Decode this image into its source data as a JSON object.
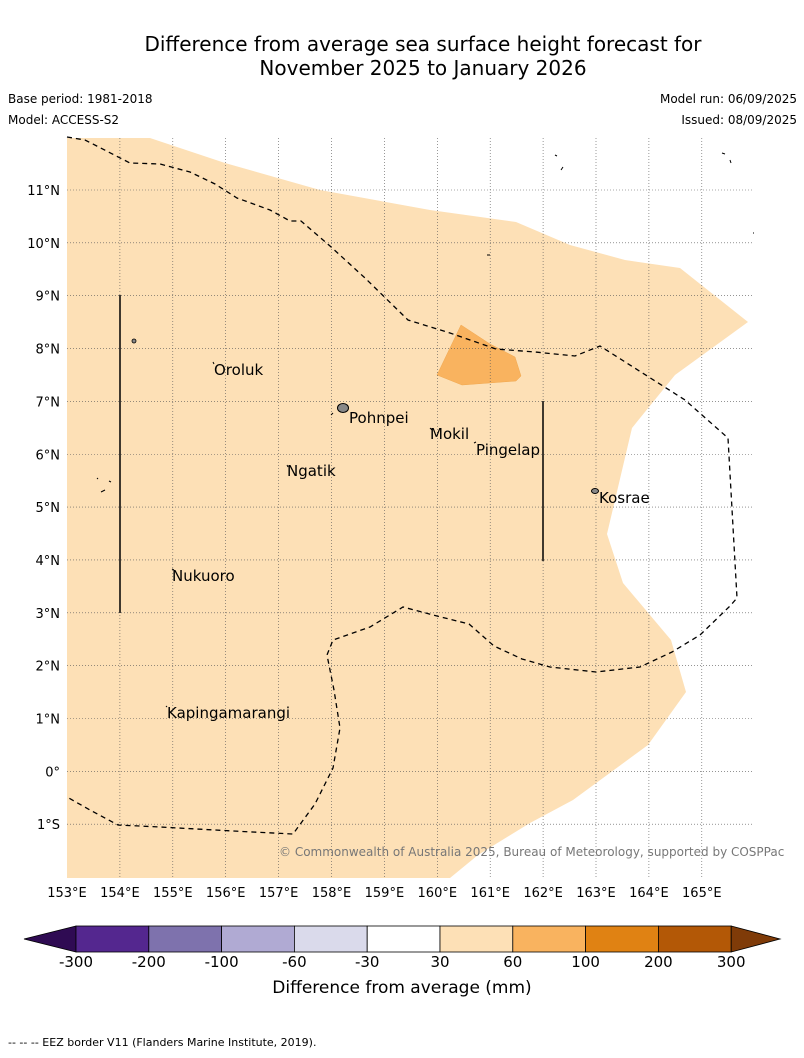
{
  "title": {
    "line1": "Difference from average sea surface height forecast for",
    "line2": "November 2025 to January 2026"
  },
  "meta": {
    "base_period": "Base period: 1981-2018",
    "model": "Model: ACCESS-S2",
    "model_run": "Model run: 06/09/2025",
    "issued": "Issued: 08/09/2025"
  },
  "map": {
    "longitude_ticks": [
      "153°E",
      "154°E",
      "155°E",
      "156°E",
      "157°E",
      "158°E",
      "159°E",
      "160°E",
      "161°E",
      "162°E",
      "163°E",
      "164°E",
      "165°E"
    ],
    "latitude_ticks": [
      "11°N",
      "10°N",
      "9°N",
      "8°N",
      "7°N",
      "6°N",
      "5°N",
      "4°N",
      "3°N",
      "2°N",
      "1°N",
      "0°",
      "1°S"
    ],
    "places": [
      "Oroluk",
      "Pohnpei",
      "Mokil",
      "Pingelap",
      "Ngatik",
      "Kosrae",
      "Nukuoro",
      "Kapingamarangi"
    ],
    "fill_color": "#fde0b6",
    "hotspot_color": "#f9b35f",
    "copyright": "© Commonwealth of Australia 2025, Bureau of Meteorology, supported by COSPPac"
  },
  "colorbar": {
    "title": "Difference from average (mm)",
    "ticks": [
      "-300",
      "-200",
      "-100",
      "-60",
      "-30",
      "30",
      "60",
      "100",
      "200",
      "300"
    ],
    "colors": [
      "#2f0b53",
      "#54278f",
      "#7e72ad",
      "#b0aad3",
      "#dadaeb",
      "#ffffff",
      "#fde0b6",
      "#f9b35f",
      "#e08213",
      "#b35806",
      "#7f3b08"
    ]
  },
  "footnote": "--  --  -- EEZ border V11 (Flanders Marine Institute, 2019)."
}
